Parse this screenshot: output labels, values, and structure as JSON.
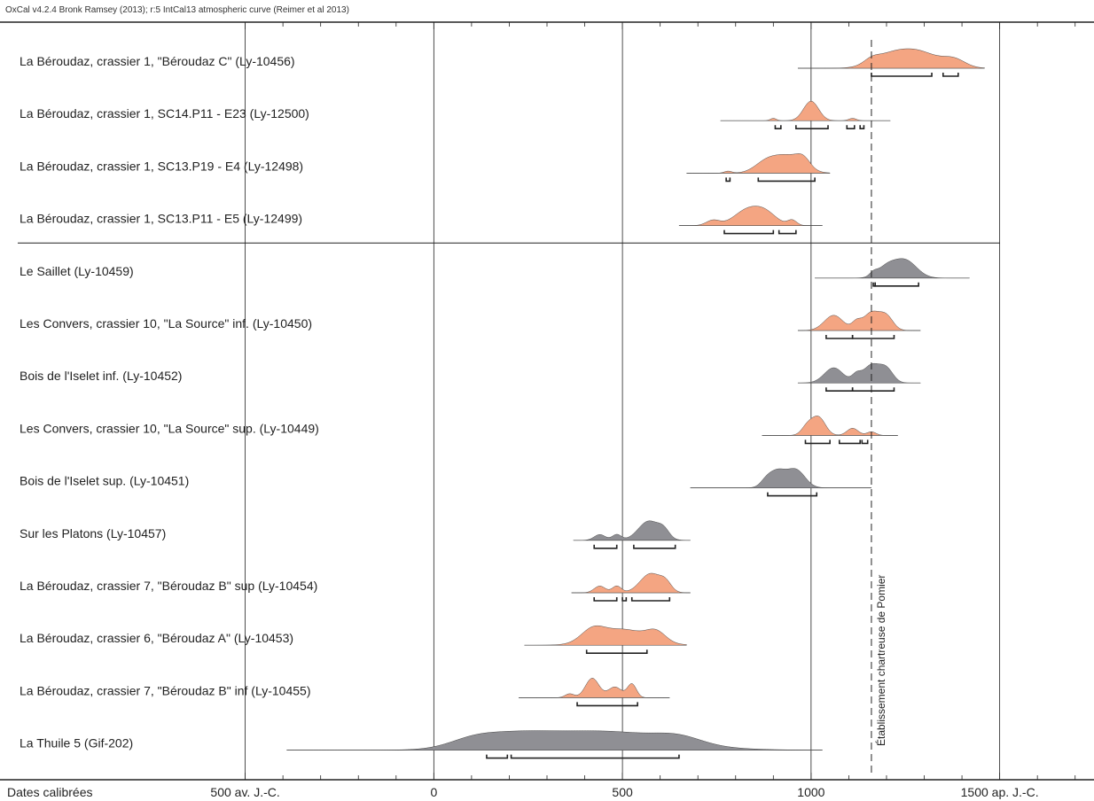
{
  "header": {
    "text": "OxCal v4.2.4 Bronk Ramsey (2013); r:5 IntCal13 atmospheric curve (Reimer et al 2013)"
  },
  "colors": {
    "orange": "#f4a582",
    "gray": "#8f8f94",
    "axis": "#222222",
    "range": "#222222"
  },
  "chart_data": {
    "type": "area",
    "title": "",
    "xlabel": "Dates calibrées",
    "xlim": [
      -1150,
      1750
    ],
    "x_ticks": [
      {
        "value": -500,
        "label": "500 av. J.-C."
      },
      {
        "value": 0,
        "label": "0"
      },
      {
        "value": 500,
        "label": "500"
      },
      {
        "value": 1000,
        "label": "1000"
      },
      {
        "value": 1500,
        "label": "1500 ap. J.-C."
      }
    ],
    "vertical_lines": [
      -500,
      0,
      500,
      1000,
      1500
    ],
    "reference_line": {
      "value": 1160,
      "label": "Établissement chartreuse de Pomier",
      "style": "dashed"
    },
    "series": [
      {
        "name": "La Béroudaz, crassier 1, \"Béroudaz C\" (Ly-10456)",
        "group": 1,
        "color": "orange",
        "baseline": [
          965,
          1460
        ],
        "peaks": [
          [
            1280,
            1,
            55
          ],
          [
            1200,
            0.55,
            45
          ],
          [
            1380,
            0.45,
            30
          ],
          [
            1160,
            0.25,
            20
          ]
        ],
        "ranges": [
          [
            1160,
            1320
          ],
          [
            1350,
            1390
          ]
        ]
      },
      {
        "name": "La Béroudaz, crassier 1, SC14.P11 - E23 (Ly-12500)",
        "group": 1,
        "color": "orange",
        "baseline": [
          760,
          1210
        ],
        "peaks": [
          [
            1000,
            1,
            20
          ],
          [
            900,
            0.12,
            8
          ],
          [
            1110,
            0.12,
            10
          ]
        ],
        "ranges": [
          [
            905,
            920
          ],
          [
            960,
            1045
          ],
          [
            1095,
            1115
          ],
          [
            1130,
            1140
          ]
        ]
      },
      {
        "name": "La Béroudaz, crassier 1, SC13.P19 - E4 (Ly-12498)",
        "group": 1,
        "color": "orange",
        "baseline": [
          670,
          1050
        ],
        "peaks": [
          [
            940,
            1,
            38
          ],
          [
            880,
            0.6,
            30
          ],
          [
            980,
            0.5,
            18
          ],
          [
            780,
            0.12,
            10
          ]
        ],
        "ranges": [
          [
            775,
            785
          ],
          [
            860,
            1010
          ]
        ]
      },
      {
        "name": "La Béroudaz, crassier 1, SC13.P11 - E5 (Ly-12499)",
        "group": 1,
        "color": "orange",
        "baseline": [
          650,
          1030
        ],
        "peaks": [
          [
            830,
            1,
            35
          ],
          [
            880,
            0.75,
            30
          ],
          [
            740,
            0.35,
            18
          ],
          [
            950,
            0.35,
            12
          ]
        ],
        "ranges": [
          [
            770,
            900
          ],
          [
            915,
            960
          ]
        ]
      },
      {
        "name": "Le Saillet (Ly-10459)",
        "group": 2,
        "color": "gray",
        "baseline": [
          1010,
          1420
        ],
        "peaks": [
          [
            1250,
            1,
            30
          ],
          [
            1200,
            0.6,
            25
          ],
          [
            1165,
            0.2,
            10
          ]
        ],
        "ranges": [
          [
            1165,
            1170
          ],
          [
            1170,
            1285
          ]
        ]
      },
      {
        "name": "Les Convers, crassier 10, \"La Source\" inf. (Ly-10450)",
        "group": 2,
        "color": "orange",
        "baseline": [
          965,
          1290
        ],
        "peaks": [
          [
            1060,
            0.85,
            25
          ],
          [
            1160,
            1,
            22
          ],
          [
            1200,
            0.75,
            18
          ],
          [
            1120,
            0.4,
            12
          ]
        ],
        "ranges": [
          [
            1040,
            1110
          ],
          [
            1110,
            1220
          ]
        ]
      },
      {
        "name": "Bois de l'Iselet inf. (Ly-10452)",
        "group": 2,
        "color": "gray",
        "baseline": [
          965,
          1290
        ],
        "peaks": [
          [
            1060,
            0.85,
            25
          ],
          [
            1160,
            1,
            22
          ],
          [
            1200,
            0.75,
            18
          ],
          [
            1120,
            0.4,
            12
          ]
        ],
        "ranges": [
          [
            1040,
            1110
          ],
          [
            1110,
            1220
          ]
        ]
      },
      {
        "name": "Les Convers, crassier 10, \"La Source\" sup. (Ly-10449)",
        "group": 2,
        "color": "orange",
        "baseline": [
          870,
          1230
        ],
        "peaks": [
          [
            1020,
            1,
            18
          ],
          [
            990,
            0.5,
            15
          ],
          [
            1110,
            0.4,
            15
          ],
          [
            1160,
            0.2,
            12
          ]
        ],
        "ranges": [
          [
            985,
            1050
          ],
          [
            1075,
            1130
          ],
          [
            1135,
            1150
          ]
        ]
      },
      {
        "name": "Bois de l'Iselet sup. (Ly-10451)",
        "group": 2,
        "color": "gray",
        "baseline": [
          680,
          1160
        ],
        "peaks": [
          [
            910,
            0.9,
            22
          ],
          [
            960,
            1,
            24
          ],
          [
            880,
            0.3,
            15
          ]
        ],
        "ranges": [
          [
            885,
            1015
          ]
        ]
      },
      {
        "name": "Sur les Platons (Ly-10457)",
        "group": 2,
        "color": "gray",
        "baseline": [
          370,
          680
        ],
        "peaks": [
          [
            570,
            1,
            28
          ],
          [
            440,
            0.3,
            15
          ],
          [
            485,
            0.3,
            12
          ],
          [
            610,
            0.4,
            15
          ]
        ],
        "ranges": [
          [
            425,
            485
          ],
          [
            530,
            640
          ]
        ]
      },
      {
        "name": "La Béroudaz, crassier 7, \"Béroudaz B\" sup (Ly-10454)",
        "group": 2,
        "color": "orange",
        "baseline": [
          365,
          680
        ],
        "peaks": [
          [
            575,
            1,
            28
          ],
          [
            440,
            0.35,
            15
          ],
          [
            485,
            0.35,
            12
          ],
          [
            615,
            0.4,
            15
          ]
        ],
        "ranges": [
          [
            425,
            485
          ],
          [
            500,
            510
          ],
          [
            525,
            625
          ]
        ]
      },
      {
        "name": "La Béroudaz, crassier 6, \"Béroudaz A\" (Ly-10453)",
        "group": 2,
        "color": "orange",
        "baseline": [
          240,
          670
        ],
        "peaks": [
          [
            500,
            1,
            65
          ],
          [
            420,
            0.7,
            30
          ],
          [
            590,
            0.6,
            25
          ]
        ],
        "ranges": [
          [
            405,
            565
          ]
        ]
      },
      {
        "name": "La Béroudaz, crassier 7, \"Béroudaz B\" inf (Ly-10455)",
        "group": 2,
        "color": "orange",
        "baseline": [
          225,
          625
        ],
        "peaks": [
          [
            420,
            1,
            18
          ],
          [
            480,
            0.55,
            18
          ],
          [
            525,
            0.7,
            12
          ],
          [
            360,
            0.2,
            12
          ]
        ],
        "ranges": [
          [
            380,
            540
          ]
        ]
      },
      {
        "name": "La Thuile 5 (Gif-202)",
        "group": 2,
        "color": "gray",
        "baseline": [
          -390,
          1030
        ],
        "peaks": [
          [
            450,
            1,
            170
          ],
          [
            200,
            0.6,
            100
          ],
          [
            650,
            0.35,
            60
          ],
          [
            100,
            0.3,
            60
          ]
        ],
        "ranges": [
          [
            140,
            195
          ],
          [
            205,
            650
          ]
        ]
      }
    ]
  }
}
